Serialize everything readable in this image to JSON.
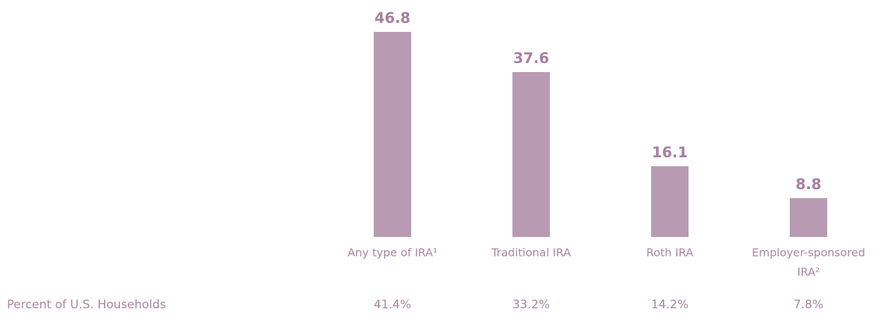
{
  "chart_data": {
    "type": "bar",
    "categories": [
      "Any type of IRA¹",
      "Traditional IRA",
      "Roth IRA",
      "Employer-sponsored IRA²"
    ],
    "values": [
      46.8,
      37.6,
      16.1,
      8.8
    ],
    "color": "#b89bb3",
    "ylim": [
      0,
      50
    ],
    "row_label": "Percent of U.S. Households",
    "row_values": [
      "41.4%",
      "33.2%",
      "14.2%",
      "7.8%"
    ]
  }
}
